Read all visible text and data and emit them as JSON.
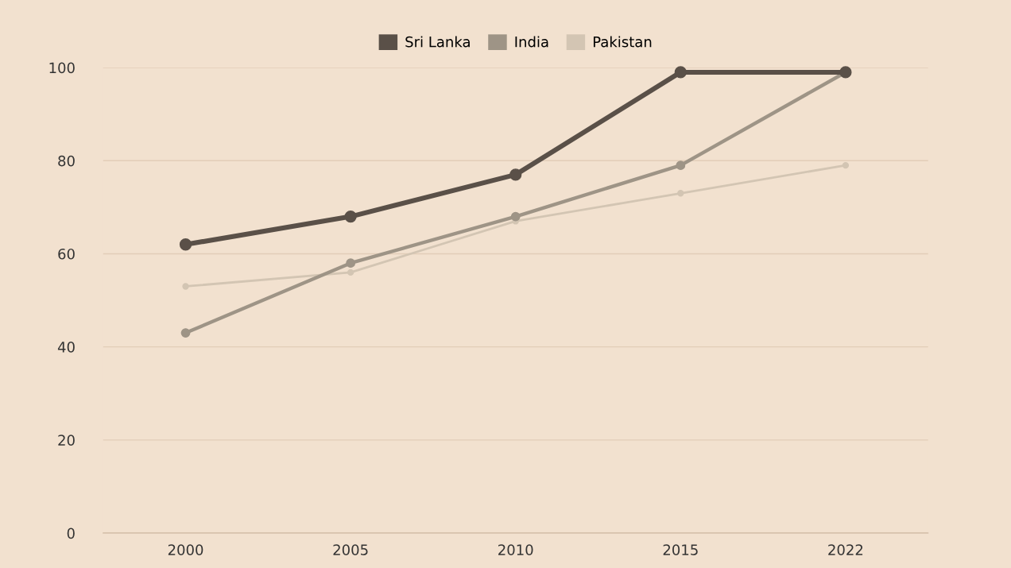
{
  "chart_data": {
    "type": "line",
    "categories": [
      "2000",
      "2005",
      "2010",
      "2015",
      "2022"
    ],
    "series": [
      {
        "name": "Sri Lanka",
        "color": "#5a5048",
        "values": [
          62,
          68,
          77,
          99,
          99
        ]
      },
      {
        "name": "India",
        "color": "#9e9486",
        "values": [
          43,
          58,
          68,
          79,
          99
        ]
      },
      {
        "name": "Pakistan",
        "color": "#d3c5b3",
        "values": [
          53,
          56,
          67,
          73,
          79
        ]
      }
    ],
    "ylim": [
      0,
      100
    ],
    "yticks": [
      0,
      20,
      40,
      60,
      80,
      100
    ],
    "grid": "y",
    "legend": "top",
    "marker": "circle",
    "line_style": "solid"
  }
}
